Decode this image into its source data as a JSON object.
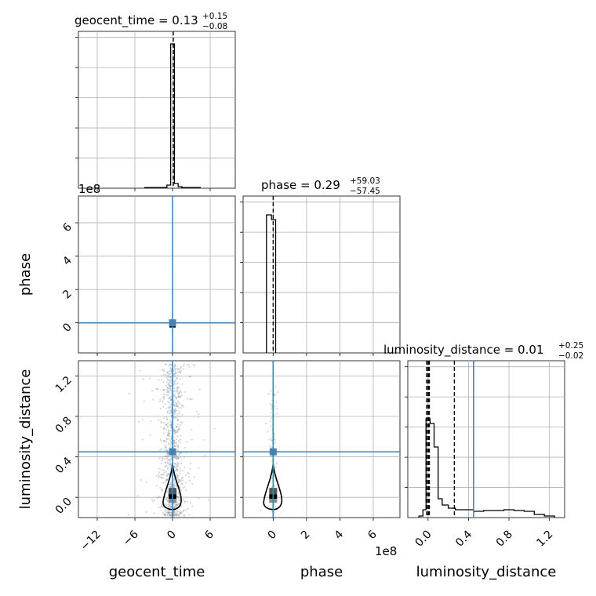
{
  "chart_data": {
    "type": "scatter",
    "kind": "corner-plot",
    "parameters": [
      "geocent_time",
      "phase",
      "luminosity_distance"
    ],
    "colors": {
      "truth": "#4682b4",
      "hist": "#000000",
      "samples": "#8c8c8c",
      "grid": "#b0b0b0"
    },
    "grid": true,
    "axes": {
      "geocent_time": {
        "range": [
          -15,
          10
        ],
        "ticks": [
          -12,
          -6,
          0,
          6
        ],
        "tick_labels": [
          "−12",
          "−6",
          "0",
          "6"
        ],
        "xlabel": "geocent_time"
      },
      "phase": {
        "range": [
          -1.8,
          7.6
        ],
        "ticks": [
          0,
          2,
          4,
          6
        ],
        "tick_labels": [
          "0",
          "2",
          "4",
          "6"
        ],
        "xlabel": "phase",
        "ylabel": "phase",
        "offset_label": "1e8"
      },
      "luminosity_distance": {
        "range": [
          -0.2,
          1.35
        ],
        "ticks": [
          0.0,
          0.4,
          0.8,
          1.2
        ],
        "tick_labels": [
          "0.0",
          "0.4",
          "0.8",
          "1.2"
        ],
        "xlabel": "luminosity_distance",
        "ylabel": "luminosity_distance"
      },
      "top_offset_label": "1e8"
    },
    "truths": {
      "geocent_time": 0.0,
      "phase": 0.0,
      "luminosity_distance": 0.45
    },
    "titles": [
      {
        "param": "geocent_time",
        "main": "geocent_time = 0.13",
        "plus": "+0.15",
        "minus": "−0.08"
      },
      {
        "param": "phase",
        "main": "phase = 0.29",
        "plus": "+59.03",
        "minus": "−57.45"
      },
      {
        "param": "luminosity_distance",
        "main": "luminosity_distance = 0.01",
        "plus": "+0.25",
        "minus": "−0.02"
      }
    ],
    "quantile_lines": {
      "geocent_time": [
        0.13
      ],
      "phase": [
        0.0
      ],
      "luminosity_distance": [
        -0.01,
        0.01,
        0.26
      ]
    },
    "histograms": {
      "geocent_time": {
        "bin_edges": [
          -1.5,
          -0.9,
          -0.3,
          0.3,
          0.9,
          1.5
        ],
        "counts": [
          0.005,
          0.02,
          0.92,
          0.03,
          0.01
        ],
        "tail_bins": [
          {
            "x": -3.0,
            "y": 0.004
          },
          {
            "x": 3.0,
            "y": 0.004
          }
        ]
      },
      "phase": {
        "bin_edges": [
          -0.4,
          -0.1,
          0.15
        ],
        "counts": [
          0.88,
          0.85
        ]
      },
      "luminosity_distance": {
        "bin_edges": [
          -0.09,
          -0.05,
          -0.02,
          0.02,
          0.06,
          0.1,
          0.14,
          0.2,
          0.27,
          0.35,
          0.45,
          0.55,
          0.65,
          0.75,
          0.85,
          0.95,
          1.05,
          1.15,
          1.25
        ],
        "counts": [
          0.01,
          0.05,
          0.63,
          0.6,
          0.45,
          0.12,
          0.08,
          0.06,
          0.05,
          0.05,
          0.04,
          0.045,
          0.045,
          0.05,
          0.045,
          0.04,
          0.02,
          0.01
        ]
      }
    },
    "joint_samples": {
      "geocent_time_luminosity_distance": {
        "x_center": 0.0,
        "x_spread": 2.4,
        "y_min": -0.18,
        "y_max": 1.32,
        "count": 900
      }
    }
  }
}
